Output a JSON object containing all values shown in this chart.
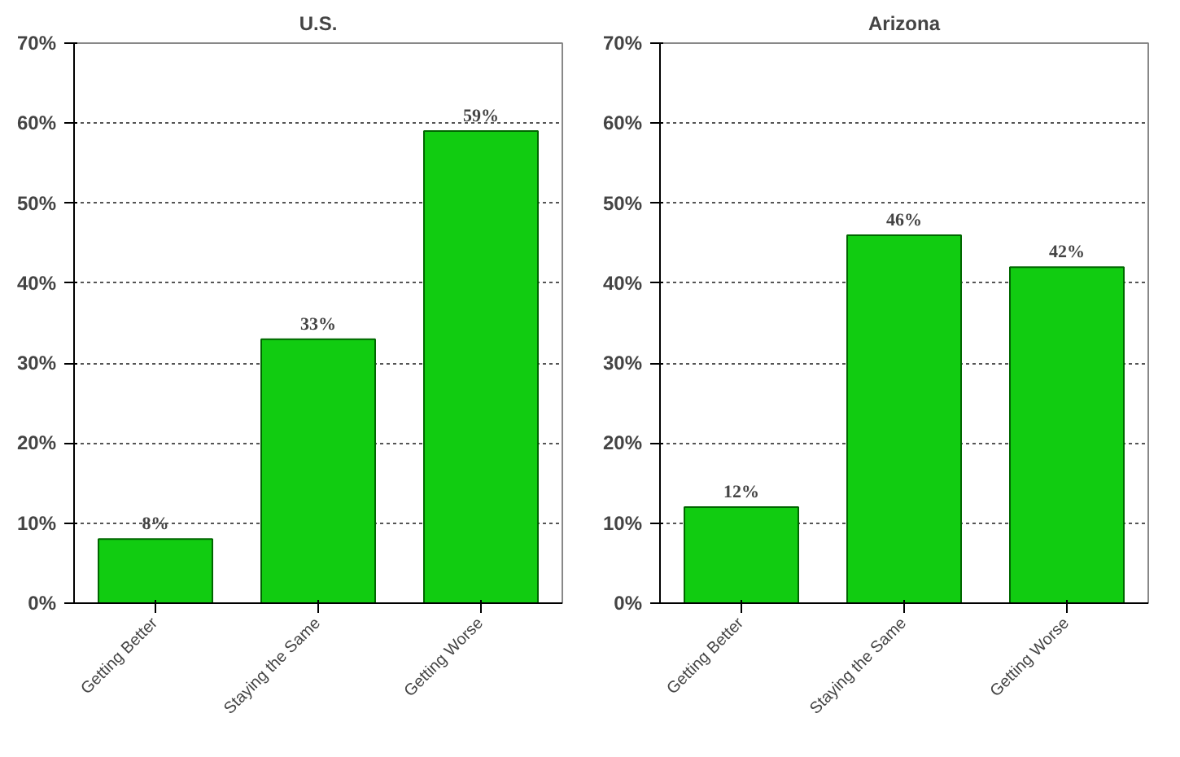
{
  "chart_data": [
    {
      "type": "bar",
      "title": "U.S.",
      "categories": [
        "Getting Better",
        "Staying the Same",
        "Getting Worse"
      ],
      "values": [
        8,
        33,
        59
      ],
      "color": "#11cc11",
      "value_labels": [
        "8%",
        "33%",
        "59%"
      ],
      "ylim": [
        0,
        70
      ],
      "yticks": [
        {
          "value": 0,
          "label": "0%"
        },
        {
          "value": 10,
          "label": "10%"
        },
        {
          "value": 20,
          "label": "20%"
        },
        {
          "value": 30,
          "label": "30%"
        },
        {
          "value": 40,
          "label": "40%"
        },
        {
          "value": 50,
          "label": "50%"
        },
        {
          "value": 60,
          "label": "60%"
        },
        {
          "value": 70,
          "label": "70%"
        }
      ],
      "grid": "y"
    },
    {
      "type": "bar",
      "title": "Arizona",
      "categories": [
        "Getting Better",
        "Staying the Same",
        "Getting Worse"
      ],
      "values": [
        12,
        46,
        42
      ],
      "color": "#11cc11",
      "value_labels": [
        "12%",
        "46%",
        "42%"
      ],
      "ylim": [
        0,
        70
      ],
      "yticks": [
        {
          "value": 0,
          "label": "0%"
        },
        {
          "value": 10,
          "label": "10%"
        },
        {
          "value": 20,
          "label": "20%"
        },
        {
          "value": 30,
          "label": "30%"
        },
        {
          "value": 40,
          "label": "40%"
        },
        {
          "value": 50,
          "label": "50%"
        },
        {
          "value": 60,
          "label": "60%"
        },
        {
          "value": 70,
          "label": "70%"
        }
      ],
      "grid": "y"
    }
  ]
}
